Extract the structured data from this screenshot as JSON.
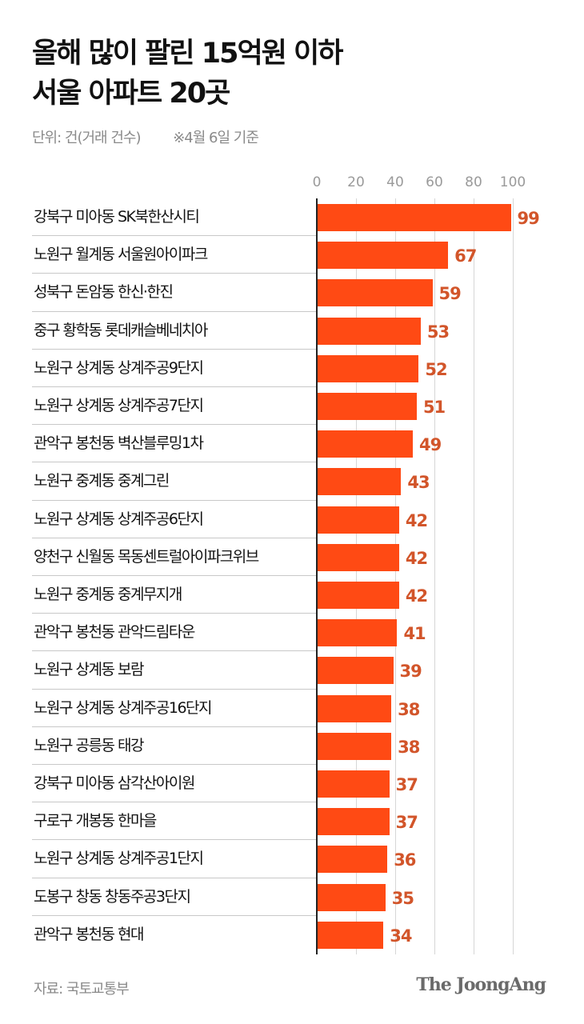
{
  "title": {
    "line1": "올해 많이 팔린 15억원 이하",
    "line2": "서울 아파트 20곳"
  },
  "subtitle": {
    "unit": "단위: 건(거래 건수)",
    "note": "※4월 6일 기준"
  },
  "footer": {
    "source": "자료: 국토교통부",
    "logo": "The JoongAng"
  },
  "colors": {
    "bar": "#ff4a14",
    "value_label": "#d2552a",
    "gridline": "#d6d6d6",
    "axis": "#222222"
  },
  "chart_data": {
    "type": "bar",
    "orientation": "horizontal",
    "title": "올해 많이 팔린 15억원 이하 서울 아파트 20곳",
    "subtitle": "단위: 건(거래 건수) ※4월 6일 기준",
    "xlabel": "",
    "ylabel": "",
    "xlim": [
      0,
      100
    ],
    "ticks": [
      "0",
      "20",
      "40",
      "60",
      "80",
      "100"
    ],
    "grid": true,
    "categories": [
      "강북구 미아동 SK북한산시티",
      "노원구 월계동 서울원아이파크",
      "성북구 돈암동 한신·한진",
      "중구 황학동 롯데캐슬베네치아",
      "노원구 상계동 상계주공9단지",
      "노원구 상계동 상계주공7단지",
      "관악구 봉천동 벽산블루밍1차",
      "노원구 중계동 중계그린",
      "노원구 상계동 상계주공6단지",
      "양천구 신월동 목동센트럴아이파크위브",
      "노원구 중계동 중계무지개",
      "관악구 봉천동 관악드림타운",
      "노원구 상계동 보람",
      "노원구 상계동 상계주공16단지",
      "노원구 공릉동 태강",
      "강북구 미아동 삼각산아이원",
      "구로구 개봉동 한마을",
      "노원구 상계동 상계주공1단지",
      "도봉구 창동 창동주공3단지",
      "관악구 봉천동 현대"
    ],
    "values": [
      99,
      67,
      59,
      53,
      52,
      51,
      49,
      43,
      42,
      42,
      42,
      41,
      39,
      38,
      38,
      37,
      37,
      36,
      35,
      34
    ],
    "source": "자료: 국토교통부"
  }
}
